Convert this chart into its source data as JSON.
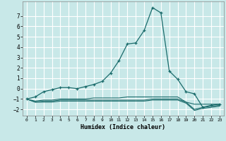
{
  "title": "",
  "xlabel": "Humidex (Indice chaleur)",
  "ylabel": "",
  "background_color": "#c8e8e8",
  "grid_color": "#ffffff",
  "line_color": "#1a6b6b",
  "xlim": [
    -0.5,
    23.5
  ],
  "ylim": [
    -2.6,
    8.4
  ],
  "xticks": [
    0,
    1,
    2,
    3,
    4,
    5,
    6,
    7,
    8,
    9,
    10,
    11,
    12,
    13,
    14,
    15,
    16,
    17,
    18,
    19,
    20,
    21,
    22,
    23
  ],
  "yticks": [
    -2,
    -1,
    0,
    1,
    2,
    3,
    4,
    5,
    6,
    7
  ],
  "series": [
    {
      "x": [
        0,
        1,
        2,
        3,
        4,
        5,
        6,
        7,
        8,
        9,
        10,
        11,
        12,
        13,
        14,
        15,
        16,
        17,
        18,
        19,
        20,
        21,
        22,
        23
      ],
      "y": [
        -1.0,
        -0.8,
        -0.3,
        -0.1,
        0.1,
        0.1,
        0.0,
        0.2,
        0.4,
        0.7,
        1.5,
        2.7,
        4.3,
        4.4,
        5.6,
        7.8,
        7.3,
        1.7,
        0.9,
        -0.3,
        -0.5,
        -1.8,
        -1.6,
        -1.5
      ],
      "marker": true
    },
    {
      "x": [
        0,
        1,
        2,
        3,
        4,
        5,
        6,
        7,
        8,
        9,
        10,
        11,
        12,
        13,
        14,
        15,
        16,
        17,
        18,
        19,
        20,
        21,
        22,
        23
      ],
      "y": [
        -1.0,
        -1.2,
        -1.1,
        -1.1,
        -1.0,
        -1.0,
        -1.0,
        -1.0,
        -0.9,
        -0.9,
        -0.9,
        -0.9,
        -0.8,
        -0.8,
        -0.8,
        -0.8,
        -0.8,
        -0.8,
        -0.8,
        -1.3,
        -1.5,
        -1.5,
        -1.5,
        -1.5
      ],
      "marker": false
    },
    {
      "x": [
        0,
        1,
        2,
        3,
        4,
        5,
        6,
        7,
        8,
        9,
        10,
        11,
        12,
        13,
        14,
        15,
        16,
        17,
        18,
        19,
        20,
        21,
        22,
        23
      ],
      "y": [
        -1.0,
        -1.3,
        -1.2,
        -1.2,
        -1.1,
        -1.1,
        -1.1,
        -1.1,
        -1.1,
        -1.1,
        -1.1,
        -1.1,
        -1.1,
        -1.1,
        -1.1,
        -1.0,
        -1.0,
        -1.0,
        -1.0,
        -1.3,
        -2.0,
        -1.8,
        -1.7,
        -1.6
      ],
      "marker": false
    },
    {
      "x": [
        0,
        1,
        2,
        3,
        4,
        5,
        6,
        7,
        8,
        9,
        10,
        11,
        12,
        13,
        14,
        15,
        16,
        17,
        18,
        19,
        20,
        21,
        22,
        23
      ],
      "y": [
        -1.0,
        -1.3,
        -1.3,
        -1.3,
        -1.2,
        -1.2,
        -1.2,
        -1.2,
        -1.2,
        -1.2,
        -1.2,
        -1.2,
        -1.2,
        -1.2,
        -1.2,
        -1.1,
        -1.1,
        -1.1,
        -1.1,
        -1.4,
        -2.1,
        -1.9,
        -1.8,
        -1.7
      ],
      "marker": false
    }
  ]
}
